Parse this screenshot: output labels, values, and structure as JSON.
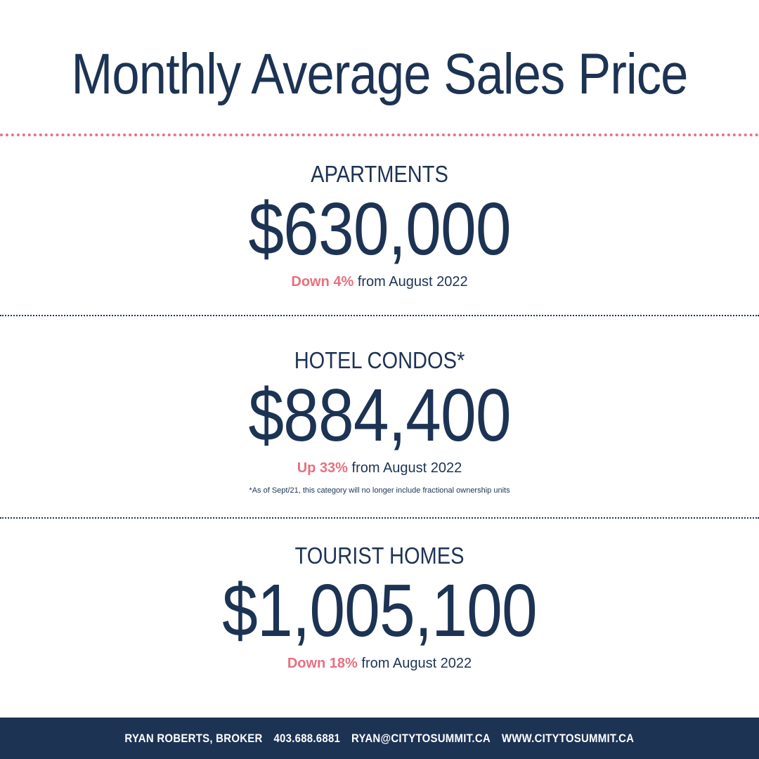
{
  "title": "Monthly Average Sales Price",
  "sections": [
    {
      "category": "APARTMENTS",
      "price": "$630,000",
      "change": "Down 4%",
      "period": "from August 2022"
    },
    {
      "category": "HOTEL CONDOS*",
      "price": "$884,400",
      "change": "Up 33%",
      "period": "from August 2022",
      "footnote": "*As of Sept/21, this category will no longer include fractional ownership units"
    },
    {
      "category": "TOURIST HOMES",
      "price": "$1,005,100",
      "change": "Down 18%",
      "period": "from August 2022"
    }
  ],
  "footer": {
    "name": "RYAN ROBERTS, BROKER",
    "phone": "403.688.6881",
    "email": "RYAN@CITYTOSUMMIT.CA",
    "website": "WWW.CITYTOSUMMIT.CA"
  },
  "colors": {
    "navy": "#1d3354",
    "pink": "#e8707e",
    "background": "#ffffff"
  }
}
